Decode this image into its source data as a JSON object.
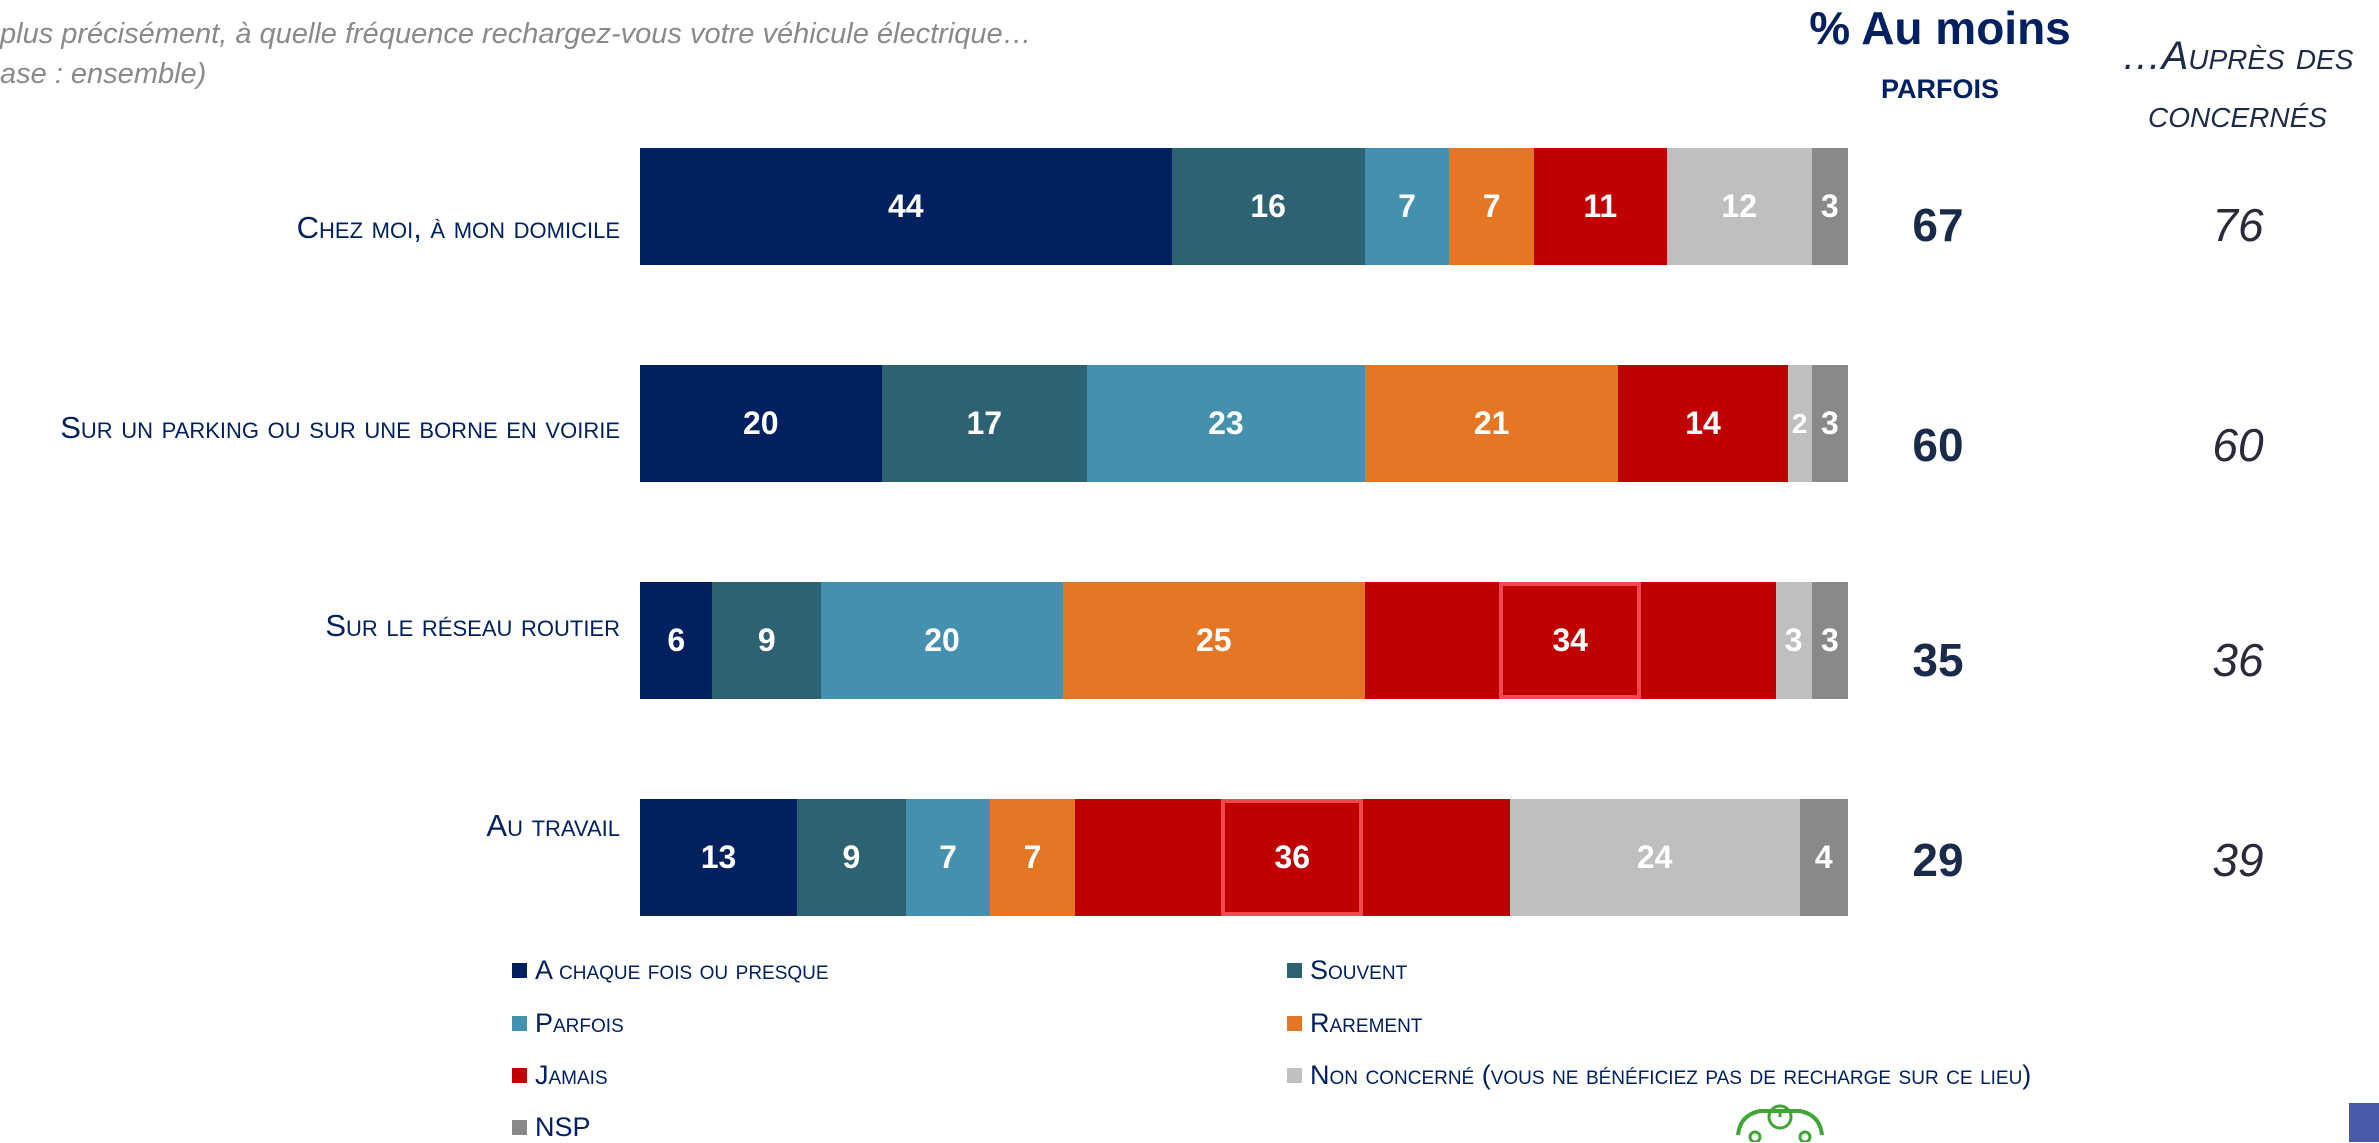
{
  "question": "plus précisément, à quelle fréquence rechargez-vous votre véhicule électrique…",
  "base": "ase : ensemble)",
  "col_headers": {
    "pct_line1": "% Au moins",
    "pct_line2": "parfois",
    "conc_line1": "…Auprès des",
    "conc_line2": "concernés"
  },
  "colors": {
    "A chaque fois ou presque": "#002060",
    "Souvent": "#2d6272",
    "Parfois": "#4391ae",
    "Rarement": "#e57724",
    "Jamais": "#c00000",
    "Non concerné": "#bfbfbf",
    "NSP": "#898989",
    "highlight": "#f0484e",
    "logo": "#3fa535",
    "corner": "#4a59a8"
  },
  "icons": [
    "electric-car-logo-icon"
  ],
  "chart_data": {
    "type": "bar",
    "orientation": "horizontal",
    "stacked": true,
    "categories": [
      "Chez moi, à mon domicile",
      "Sur un parking ou sur une borne en voirie",
      "Sur le réseau routier",
      "Au travail"
    ],
    "series": [
      {
        "name": "A chaque fois ou presque",
        "values": [
          44,
          20,
          6,
          13
        ]
      },
      {
        "name": "Souvent",
        "values": [
          16,
          17,
          9,
          9
        ]
      },
      {
        "name": "Parfois",
        "values": [
          7,
          23,
          20,
          7
        ]
      },
      {
        "name": "Rarement",
        "values": [
          7,
          21,
          25,
          7
        ]
      },
      {
        "name": "Jamais",
        "values": [
          11,
          14,
          34,
          36
        ]
      },
      {
        "name": "Non concerné (vous ne bénéficiez pas de recharge sur ce lieu)",
        "values": [
          12,
          2,
          3,
          24
        ]
      },
      {
        "name": "NSP",
        "values": [
          3,
          3,
          3,
          4
        ]
      }
    ],
    "highlighted": [
      {
        "category": "Sur le réseau routier",
        "series": "Jamais"
      },
      {
        "category": "Au travail",
        "series": "Jamais"
      }
    ],
    "pct_au_moins_parfois": [
      67,
      60,
      35,
      29
    ],
    "aupres_des_concernes": [
      76,
      60,
      36,
      39
    ],
    "xlim": [
      0,
      100
    ],
    "legend_position": "bottom",
    "grid": false
  }
}
